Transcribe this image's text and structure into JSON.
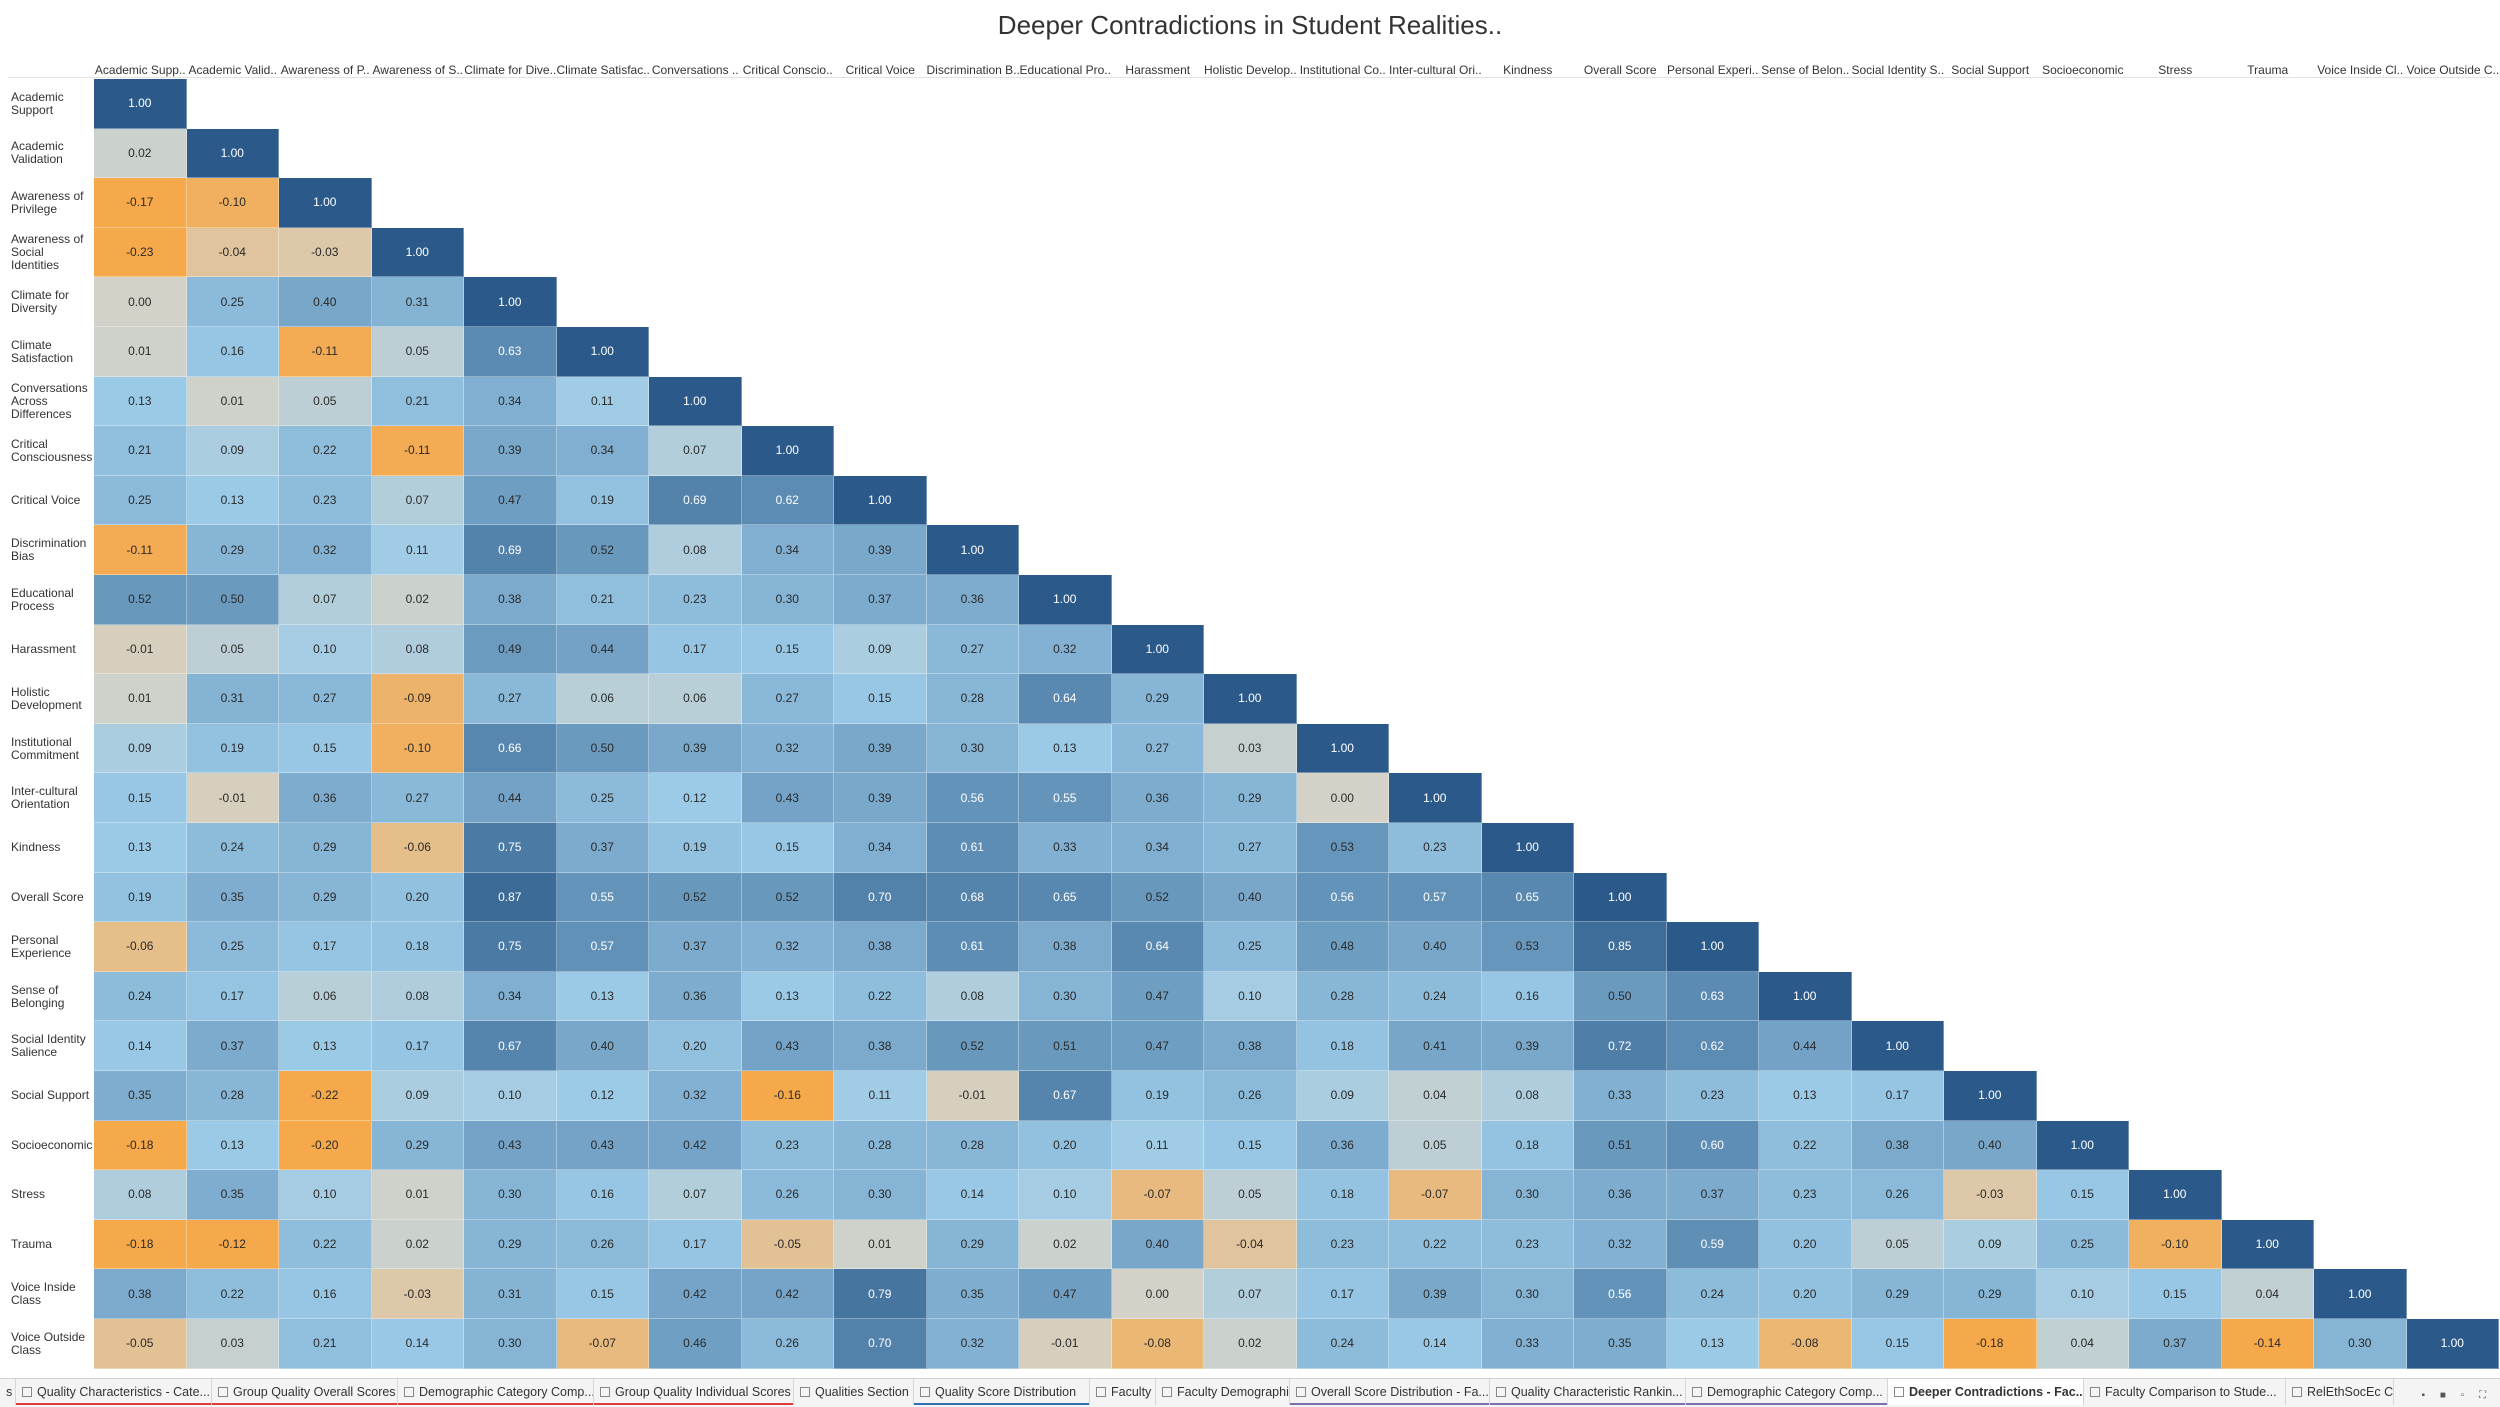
{
  "dashboard": {
    "title": "Deeper Contradictions in Student Realities.."
  },
  "chart_data": {
    "type": "heatmap",
    "title": "Deeper Contradictions in Student Realities..",
    "column_labels": [
      "Academic Supp..",
      "Academic Valid..",
      "Awareness of P..",
      "Awareness of S..",
      "Climate for Dive..",
      "Climate Satisfac..",
      "Conversations ..",
      "Critical Conscio..",
      "Critical Voice",
      "Discrimination B..",
      "Educational Pro..",
      "Harassment",
      "Holistic Develop..",
      "Institutional Co..",
      "Inter-cultural Ori..",
      "Kindness",
      "Overall Score",
      "Personal Experi..",
      "Sense of Belon..",
      "Social Identity S..",
      "Social Support",
      "Socioeconomic",
      "Stress",
      "Trauma",
      "Voice Inside Cl..",
      "Voice Outside C.."
    ],
    "row_labels": [
      "Academic Support",
      "Academic Validation",
      "Awareness of Privilege",
      "Awareness of Social Identities",
      "Climate for Diversity",
      "Climate Satisfaction",
      "Conversations Across Differences",
      "Critical Consciousness",
      "Critical Voice",
      "Discrimination Bias",
      "Educational Process",
      "Harassment",
      "Holistic Development",
      "Institutional Commitment",
      "Inter-cultural Orientation",
      "Kindness",
      "Overall Score",
      "Personal Experience",
      "Sense of Belonging",
      "Social Identity Salience",
      "Social Support",
      "Socioeconomic",
      "Stress",
      "Trauma",
      "Voice Inside Class",
      "Voice Outside Class"
    ],
    "row_label_lines": [
      [
        "Academic",
        "Support"
      ],
      [
        "Academic",
        "Validation"
      ],
      [
        "Awareness of",
        "Privilege"
      ],
      [
        "Awareness of",
        "Social Identities"
      ],
      [
        "Climate for",
        "Diversity"
      ],
      [
        "Climate",
        "Satisfaction"
      ],
      [
        "Conversations",
        "Across",
        "Differences"
      ],
      [
        "Critical",
        "Consciousness"
      ],
      [
        "Critical Voice"
      ],
      [
        "Discrimination",
        "Bias"
      ],
      [
        "Educational",
        "Process"
      ],
      [
        "Harassment"
      ],
      [
        "Holistic",
        "Development"
      ],
      [
        "Institutional",
        "Commitment"
      ],
      [
        "Inter-cultural",
        "Orientation"
      ],
      [
        "Kindness"
      ],
      [
        "Overall Score"
      ],
      [
        "Personal",
        "Experience"
      ],
      [
        "Sense of",
        "Belonging"
      ],
      [
        "Social Identity",
        "Salience"
      ],
      [
        "Social Support"
      ],
      [
        "Socioeconomic"
      ],
      [
        "Stress"
      ],
      [
        "Trauma"
      ],
      [
        "Voice Inside",
        "Class"
      ],
      [
        "Voice Outside",
        "Class"
      ]
    ],
    "values": [
      [
        "1.00"
      ],
      [
        "0.02",
        "1.00"
      ],
      [
        "-0.17",
        "-0.10",
        "1.00"
      ],
      [
        "-0.23",
        "-0.04",
        "-0.03",
        "1.00"
      ],
      [
        "0.00",
        "0.25",
        "0.40",
        "0.31",
        "1.00"
      ],
      [
        "0.01",
        "0.16",
        "-0.11",
        "0.05",
        "0.63",
        "1.00"
      ],
      [
        "0.13",
        "0.01",
        "0.05",
        "0.21",
        "0.34",
        "0.11",
        "1.00"
      ],
      [
        "0.21",
        "0.09",
        "0.22",
        "-0.11",
        "0.39",
        "0.34",
        "0.07",
        "1.00"
      ],
      [
        "0.25",
        "0.13",
        "0.23",
        "0.07",
        "0.47",
        "0.19",
        "0.69",
        "0.62",
        "1.00"
      ],
      [
        "-0.11",
        "0.29",
        "0.32",
        "0.11",
        "0.69",
        "0.52",
        "0.08",
        "0.34",
        "0.39",
        "1.00"
      ],
      [
        "0.52",
        "0.50",
        "0.07",
        "0.02",
        "0.38",
        "0.21",
        "0.23",
        "0.30",
        "0.37",
        "0.36",
        "1.00"
      ],
      [
        "-0.01",
        "0.05",
        "0.10",
        "0.08",
        "0.49",
        "0.44",
        "0.17",
        "0.15",
        "0.09",
        "0.27",
        "0.32",
        "1.00"
      ],
      [
        "0.01",
        "0.31",
        "0.27",
        "-0.09",
        "0.27",
        "0.06",
        "0.06",
        "0.27",
        "0.15",
        "0.28",
        "0.64",
        "0.29",
        "1.00"
      ],
      [
        "0.09",
        "0.19",
        "0.15",
        "-0.10",
        "0.66",
        "0.50",
        "0.39",
        "0.32",
        "0.39",
        "0.30",
        "0.13",
        "0.27",
        "0.03",
        "1.00"
      ],
      [
        "0.15",
        "-0.01",
        "0.36",
        "0.27",
        "0.44",
        "0.25",
        "0.12",
        "0.43",
        "0.39",
        "0.56",
        "0.55",
        "0.36",
        "0.29",
        "0.00",
        "1.00"
      ],
      [
        "0.13",
        "0.24",
        "0.29",
        "-0.06",
        "0.75",
        "0.37",
        "0.19",
        "0.15",
        "0.34",
        "0.61",
        "0.33",
        "0.34",
        "0.27",
        "0.53",
        "0.23",
        "1.00"
      ],
      [
        "0.19",
        "0.35",
        "0.29",
        "0.20",
        "0.87",
        "0.55",
        "0.52",
        "0.52",
        "0.70",
        "0.68",
        "0.65",
        "0.52",
        "0.40",
        "0.56",
        "0.57",
        "0.65",
        "1.00"
      ],
      [
        "-0.06",
        "0.25",
        "0.17",
        "0.18",
        "0.75",
        "0.57",
        "0.37",
        "0.32",
        "0.38",
        "0.61",
        "0.38",
        "0.64",
        "0.25",
        "0.48",
        "0.40",
        "0.53",
        "0.85",
        "1.00"
      ],
      [
        "0.24",
        "0.17",
        "0.06",
        "0.08",
        "0.34",
        "0.13",
        "0.36",
        "0.13",
        "0.22",
        "0.08",
        "0.30",
        "0.47",
        "0.10",
        "0.28",
        "0.24",
        "0.16",
        "0.50",
        "0.63",
        "1.00"
      ],
      [
        "0.14",
        "0.37",
        "0.13",
        "0.17",
        "0.67",
        "0.40",
        "0.20",
        "0.43",
        "0.38",
        "0.52",
        "0.51",
        "0.47",
        "0.38",
        "0.18",
        "0.41",
        "0.39",
        "0.72",
        "0.62",
        "0.44",
        "1.00"
      ],
      [
        "0.35",
        "0.28",
        "-0.22",
        "0.09",
        "0.10",
        "0.12",
        "0.32",
        "-0.16",
        "0.11",
        "-0.01",
        "0.67",
        "0.19",
        "0.26",
        "0.09",
        "0.04",
        "0.08",
        "0.33",
        "0.23",
        "0.13",
        "0.17",
        "1.00"
      ],
      [
        "-0.18",
        "0.13",
        "-0.20",
        "0.29",
        "0.43",
        "0.43",
        "0.42",
        "0.23",
        "0.28",
        "0.28",
        "0.20",
        "0.11",
        "0.15",
        "0.36",
        "0.05",
        "0.18",
        "0.51",
        "0.60",
        "0.22",
        "0.38",
        "0.40",
        "1.00"
      ],
      [
        "0.08",
        "0.35",
        "0.10",
        "0.01",
        "0.30",
        "0.16",
        "0.07",
        "0.26",
        "0.30",
        "0.14",
        "0.10",
        "-0.07",
        "0.05",
        "0.18",
        "-0.07",
        "0.30",
        "0.36",
        "0.37",
        "0.23",
        "0.26",
        "-0.03",
        "0.15",
        "1.00"
      ],
      [
        "-0.18",
        "-0.12",
        "0.22",
        "0.02",
        "0.29",
        "0.26",
        "0.17",
        "-0.05",
        "0.01",
        "0.29",
        "0.02",
        "0.40",
        "-0.04",
        "0.23",
        "0.22",
        "0.23",
        "0.32",
        "0.59",
        "0.20",
        "0.05",
        "0.09",
        "0.25",
        "-0.10",
        "1.00"
      ],
      [
        "0.38",
        "0.22",
        "0.16",
        "-0.03",
        "0.31",
        "0.15",
        "0.42",
        "0.42",
        "0.79",
        "0.35",
        "0.47",
        "0.00",
        "0.07",
        "0.17",
        "0.39",
        "0.30",
        "0.56",
        "0.24",
        "0.20",
        "0.29",
        "0.29",
        "0.10",
        "0.15",
        "0.04",
        "1.00"
      ],
      [
        "-0.05",
        "0.03",
        "0.21",
        "0.14",
        "0.30",
        "-0.07",
        "0.46",
        "0.26",
        "0.70",
        "0.32",
        "-0.01",
        "-0.08",
        "0.02",
        "0.24",
        "0.14",
        "0.33",
        "0.35",
        "0.13",
        "-0.08",
        "0.15",
        "-0.18",
        "0.04",
        "0.37",
        "-0.14",
        "0.30",
        "1.00"
      ]
    ],
    "color_scale": {
      "negative_color": "#f6a94a",
      "neutral_color": "#d4d2c8",
      "light_positive_color": "#9ccbe8",
      "positive_color": "#2b5a8a",
      "domain": [
        -0.23,
        1.0
      ]
    }
  },
  "tabs": {
    "items": [
      {
        "label": "s",
        "active": false,
        "underline": ""
      },
      {
        "label": "Quality Characteristics - Cate...",
        "active": false,
        "underline": "#e03a3e"
      },
      {
        "label": "Group Quality Overall Scores",
        "active": false,
        "underline": "#e03a3e"
      },
      {
        "label": "Demographic Category Comp...",
        "active": false,
        "underline": "#e03a3e"
      },
      {
        "label": "Group Quality Individual Scores",
        "active": false,
        "underline": "#e03a3e"
      },
      {
        "label": "Qualities Section",
        "active": false,
        "underline": ""
      },
      {
        "label": "Quality Score Distribution",
        "active": false,
        "underline": "#2f6fb0"
      },
      {
        "label": "Faculty",
        "active": false,
        "underline": ""
      },
      {
        "label": "Faculty Demographics",
        "active": false,
        "underline": ""
      },
      {
        "label": "Overall Score Distribution - Fa...",
        "active": false,
        "underline": "#7a6fb0"
      },
      {
        "label": "Quality Characteristic Rankin...",
        "active": false,
        "underline": "#7a6fb0"
      },
      {
        "label": "Demographic Category Comp...",
        "active": false,
        "underline": "#7a6fb0"
      },
      {
        "label": "Deeper Contradictions - Fac...",
        "active": true,
        "underline": ""
      },
      {
        "label": "Faculty Comparison to Stude...",
        "active": false,
        "underline": ""
      },
      {
        "label": "RelEthSocEc Comps",
        "active": false,
        "underline": ""
      }
    ],
    "control_glyphs": "▪ ■ ▫ ⛶"
  }
}
